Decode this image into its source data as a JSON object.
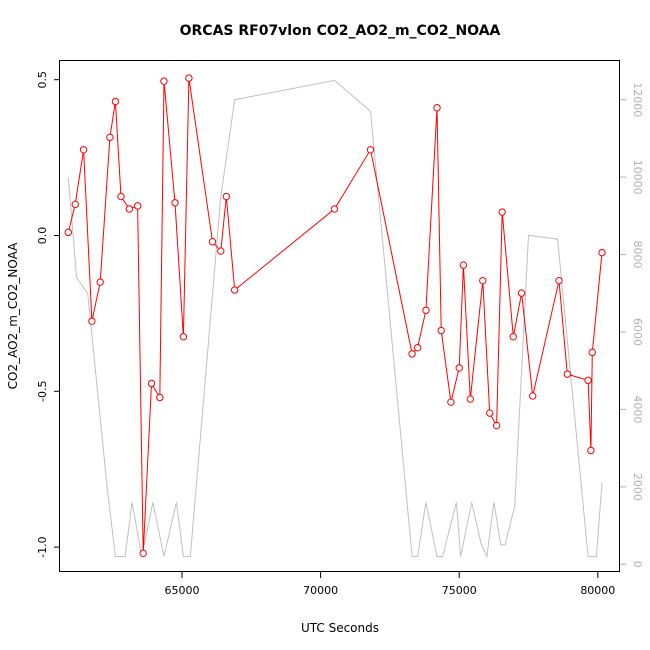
{
  "chart_data": {
    "type": "line",
    "title": "ORCAS RF07vlon CO2_AO2_m_CO2_NOAA",
    "xlabel": "UTC Seconds",
    "ylabel": "CO2_AO2_m_CO2_NOAA",
    "xlim": [
      60600,
      80800
    ],
    "ylim": [
      -1.08,
      0.56
    ],
    "y2lim": [
      -200,
      13000
    ],
    "x_ticks": [
      {
        "value": 65000,
        "label": "65000"
      },
      {
        "value": 70000,
        "label": "70000"
      },
      {
        "value": 75000,
        "label": "75000"
      },
      {
        "value": 80000,
        "label": "80000"
      }
    ],
    "y_ticks": [
      {
        "value": 0.5,
        "label": "0.5"
      },
      {
        "value": 0.0,
        "label": "0.0"
      },
      {
        "value": -0.5,
        "label": "-0.5"
      },
      {
        "value": -1.0,
        "label": "-1.0"
      }
    ],
    "y2_ticks": [
      {
        "value": 0,
        "label": "0"
      },
      {
        "value": 2000,
        "label": "2000"
      },
      {
        "value": 4000,
        "label": "4000"
      },
      {
        "value": 6000,
        "label": "6000"
      },
      {
        "value": 8000,
        "label": "8000"
      },
      {
        "value": 10000,
        "label": "10000"
      },
      {
        "value": 12000,
        "label": "12000"
      }
    ],
    "series": [
      {
        "axis": "left",
        "style": "line-points",
        "color": "#ff0000",
        "x": [
          60900,
          61150,
          61450,
          61750,
          62050,
          62400,
          62600,
          62800,
          63100,
          63400,
          63600,
          63900,
          64200,
          64350,
          64750,
          65050,
          65250,
          66100,
          66400,
          66600,
          66900,
          70500,
          71800,
          73300,
          73500,
          73800,
          74200,
          74350,
          74700,
          75000,
          75150,
          75400,
          75850,
          76100,
          76350,
          76550,
          76950,
          77250,
          77650,
          78600,
          78900,
          79650,
          79750,
          79800,
          80150
        ],
        "y": [
          0.01,
          0.1,
          0.275,
          -0.275,
          -0.15,
          0.315,
          0.43,
          0.125,
          0.085,
          0.095,
          -1.02,
          -0.475,
          -0.52,
          0.495,
          0.105,
          -0.325,
          0.505,
          -0.02,
          -0.05,
          0.125,
          -0.175,
          0.085,
          0.275,
          -0.38,
          -0.36,
          -0.24,
          0.41,
          -0.305,
          -0.535,
          -0.425,
          -0.095,
          -0.525,
          -0.145,
          -0.57,
          -0.61,
          0.075,
          -0.325,
          -0.185,
          -0.515,
          -0.145,
          -0.445,
          -0.465,
          -0.69,
          -0.375,
          -0.055
        ]
      },
      {
        "axis": "right",
        "style": "line",
        "color": "#c0c0c0",
        "x": [
          60900,
          61200,
          61600,
          62300,
          62600,
          62950,
          63200,
          63550,
          63950,
          64350,
          64800,
          65050,
          65300,
          66400,
          66900,
          70500,
          71800,
          73300,
          73500,
          73800,
          74200,
          74400,
          74900,
          75050,
          75450,
          75800,
          76000,
          76250,
          76500,
          76650,
          77000,
          77500,
          78550,
          79650,
          79950,
          80150
        ],
        "y": [
          10000,
          7400,
          7000,
          2000,
          200,
          200,
          1600,
          200,
          1600,
          200,
          1600,
          200,
          200,
          9500,
          12000,
          12500,
          11700,
          200,
          200,
          1600,
          200,
          200,
          1600,
          200,
          1600,
          500,
          200,
          1600,
          500,
          500,
          1500,
          8500,
          8400,
          200,
          200,
          2100
        ]
      }
    ],
    "grid": false,
    "legend": "none"
  }
}
